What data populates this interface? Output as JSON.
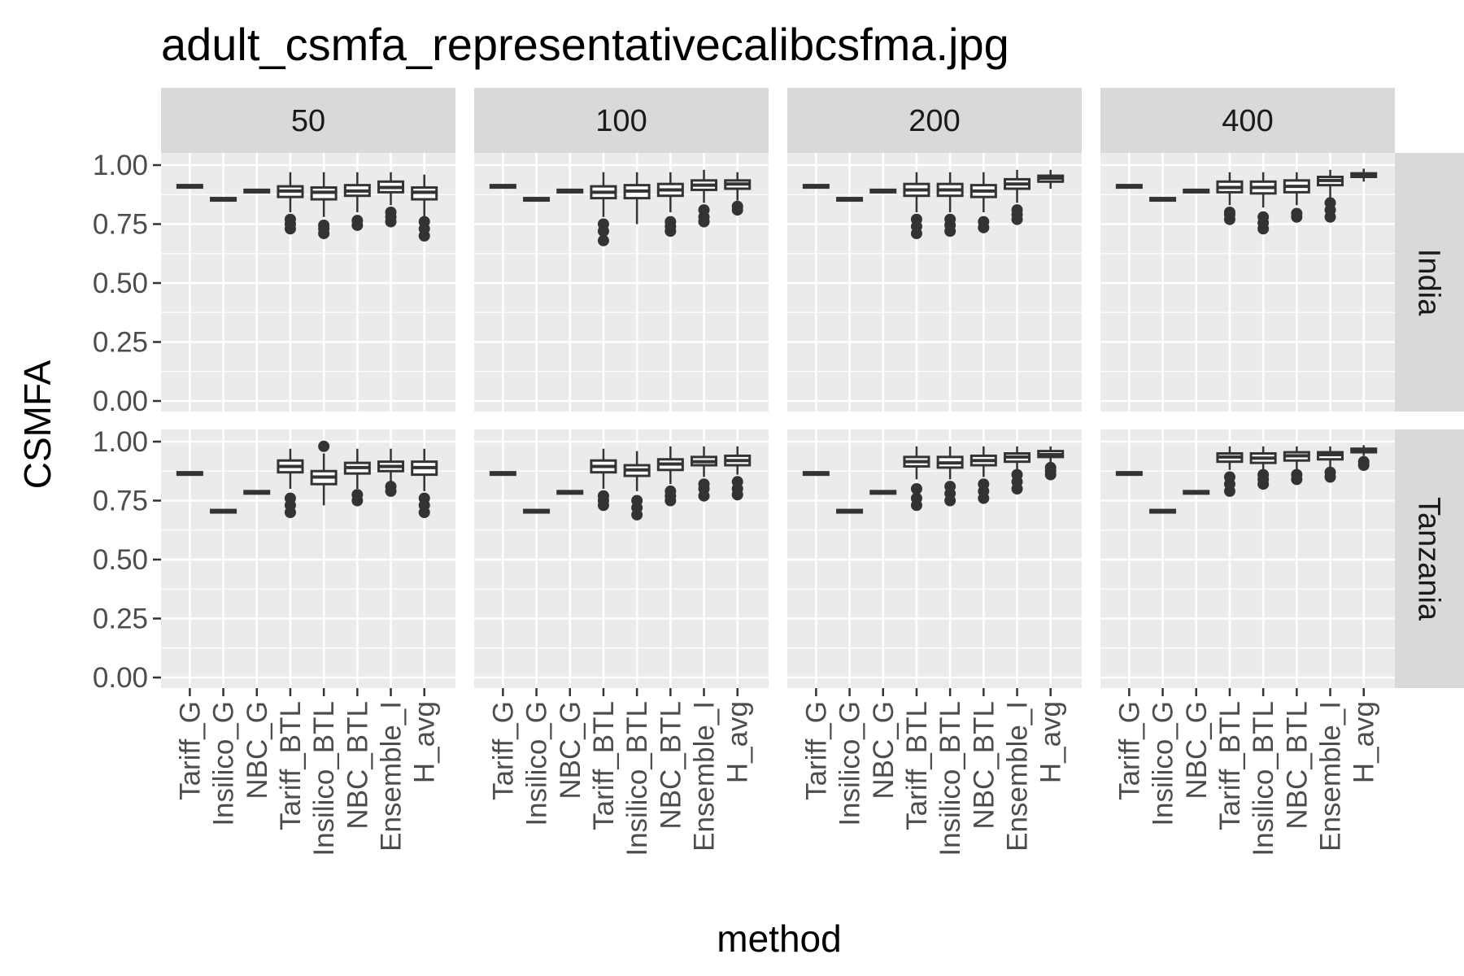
{
  "chart_data": {
    "type": "boxplot",
    "title": "adult_csmfa_representativecalibcsfma.jpg",
    "xlabel": "method",
    "ylabel": "CSMFA",
    "ylim": [
      0,
      1.05
    ],
    "y_ticks": [
      "0.00",
      "0.25",
      "0.50",
      "0.75",
      "1.00"
    ],
    "y_tick_values": [
      0,
      0.25,
      0.5,
      0.75,
      1.0
    ],
    "grid": true,
    "facet_cols": [
      "50",
      "100",
      "200",
      "400"
    ],
    "facet_rows": [
      "India",
      "Tanzania"
    ],
    "categories": [
      "Tariff_G",
      "Insilico_G",
      "NBC_G",
      "Tariff_BTL",
      "Insilico_BTL",
      "NBC_BTL",
      "Ensemble_I",
      "H_avg"
    ],
    "panels": [
      {
        "row": "India",
        "col": "50",
        "boxes": [
          {
            "method": "Tariff_G",
            "min": 0.91,
            "q1": 0.91,
            "median": 0.91,
            "q3": 0.91,
            "max": 0.91,
            "outliers": []
          },
          {
            "method": "Insilico_G",
            "min": 0.855,
            "q1": 0.855,
            "median": 0.855,
            "q3": 0.855,
            "max": 0.855,
            "outliers": []
          },
          {
            "method": "NBC_G",
            "min": 0.89,
            "q1": 0.89,
            "median": 0.89,
            "q3": 0.89,
            "max": 0.89,
            "outliers": []
          },
          {
            "method": "Tariff_BTL",
            "min": 0.8,
            "q1": 0.865,
            "median": 0.89,
            "q3": 0.91,
            "max": 0.97,
            "outliers": [
              0.73,
              0.75,
              0.77
            ]
          },
          {
            "method": "Insilico_BTL",
            "min": 0.78,
            "q1": 0.855,
            "median": 0.885,
            "q3": 0.905,
            "max": 0.97,
            "outliers": [
              0.71,
              0.73,
              0.745
            ]
          },
          {
            "method": "NBC_BTL",
            "min": 0.8,
            "q1": 0.87,
            "median": 0.89,
            "q3": 0.915,
            "max": 0.97,
            "outliers": [
              0.745,
              0.765
            ]
          },
          {
            "method": "Ensemble_I",
            "min": 0.83,
            "q1": 0.885,
            "median": 0.905,
            "q3": 0.93,
            "max": 0.97,
            "outliers": [
              0.76,
              0.78,
              0.8
            ]
          },
          {
            "method": "H_avg",
            "min": 0.78,
            "q1": 0.855,
            "median": 0.885,
            "q3": 0.905,
            "max": 0.96,
            "outliers": [
              0.7,
              0.73,
              0.76
            ]
          }
        ]
      },
      {
        "row": "India",
        "col": "100",
        "boxes": [
          {
            "method": "Tariff_G",
            "min": 0.91,
            "q1": 0.91,
            "median": 0.91,
            "q3": 0.91,
            "max": 0.91,
            "outliers": []
          },
          {
            "method": "Insilico_G",
            "min": 0.855,
            "q1": 0.855,
            "median": 0.855,
            "q3": 0.855,
            "max": 0.855,
            "outliers": []
          },
          {
            "method": "NBC_G",
            "min": 0.89,
            "q1": 0.89,
            "median": 0.89,
            "q3": 0.89,
            "max": 0.89,
            "outliers": []
          },
          {
            "method": "Tariff_BTL",
            "min": 0.78,
            "q1": 0.86,
            "median": 0.885,
            "q3": 0.91,
            "max": 0.97,
            "outliers": [
              0.68,
              0.72,
              0.75
            ]
          },
          {
            "method": "Insilico_BTL",
            "min": 0.75,
            "q1": 0.86,
            "median": 0.89,
            "q3": 0.915,
            "max": 0.97,
            "outliers": []
          },
          {
            "method": "NBC_BTL",
            "min": 0.8,
            "q1": 0.87,
            "median": 0.895,
            "q3": 0.92,
            "max": 0.97,
            "outliers": [
              0.72,
              0.74,
              0.76
            ]
          },
          {
            "method": "Ensemble_I",
            "min": 0.84,
            "q1": 0.895,
            "median": 0.915,
            "q3": 0.935,
            "max": 0.98,
            "outliers": [
              0.76,
              0.78,
              0.81
            ]
          },
          {
            "method": "H_avg",
            "min": 0.85,
            "q1": 0.9,
            "median": 0.92,
            "q3": 0.935,
            "max": 0.97,
            "outliers": [
              0.81,
              0.825
            ]
          }
        ]
      },
      {
        "row": "India",
        "col": "200",
        "boxes": [
          {
            "method": "Tariff_G",
            "min": 0.91,
            "q1": 0.91,
            "median": 0.91,
            "q3": 0.91,
            "max": 0.91,
            "outliers": []
          },
          {
            "method": "Insilico_G",
            "min": 0.855,
            "q1": 0.855,
            "median": 0.855,
            "q3": 0.855,
            "max": 0.855,
            "outliers": []
          },
          {
            "method": "NBC_G",
            "min": 0.89,
            "q1": 0.89,
            "median": 0.89,
            "q3": 0.89,
            "max": 0.89,
            "outliers": []
          },
          {
            "method": "Tariff_BTL",
            "min": 0.8,
            "q1": 0.87,
            "median": 0.895,
            "q3": 0.92,
            "max": 0.97,
            "outliers": [
              0.71,
              0.74,
              0.77
            ]
          },
          {
            "method": "Insilico_BTL",
            "min": 0.8,
            "q1": 0.87,
            "median": 0.895,
            "q3": 0.92,
            "max": 0.97,
            "outliers": [
              0.72,
              0.745,
              0.77
            ]
          },
          {
            "method": "NBC_BTL",
            "min": 0.8,
            "q1": 0.865,
            "median": 0.89,
            "q3": 0.915,
            "max": 0.97,
            "outliers": [
              0.735,
              0.76
            ]
          },
          {
            "method": "Ensemble_I",
            "min": 0.84,
            "q1": 0.9,
            "median": 0.92,
            "q3": 0.94,
            "max": 0.98,
            "outliers": [
              0.77,
              0.79,
              0.81
            ]
          },
          {
            "method": "H_avg",
            "min": 0.9,
            "q1": 0.93,
            "median": 0.945,
            "q3": 0.955,
            "max": 0.98,
            "outliers": []
          }
        ]
      },
      {
        "row": "India",
        "col": "400",
        "boxes": [
          {
            "method": "Tariff_G",
            "min": 0.91,
            "q1": 0.91,
            "median": 0.91,
            "q3": 0.91,
            "max": 0.91,
            "outliers": []
          },
          {
            "method": "Insilico_G",
            "min": 0.855,
            "q1": 0.855,
            "median": 0.855,
            "q3": 0.855,
            "max": 0.855,
            "outliers": []
          },
          {
            "method": "NBC_G",
            "min": 0.89,
            "q1": 0.89,
            "median": 0.89,
            "q3": 0.89,
            "max": 0.89,
            "outliers": []
          },
          {
            "method": "Tariff_BTL",
            "min": 0.83,
            "q1": 0.885,
            "median": 0.905,
            "q3": 0.93,
            "max": 0.97,
            "outliers": [
              0.77,
              0.79,
              0.8
            ]
          },
          {
            "method": "Insilico_BTL",
            "min": 0.82,
            "q1": 0.88,
            "median": 0.905,
            "q3": 0.93,
            "max": 0.97,
            "outliers": [
              0.73,
              0.755,
              0.78
            ]
          },
          {
            "method": "NBC_BTL",
            "min": 0.83,
            "q1": 0.885,
            "median": 0.91,
            "q3": 0.935,
            "max": 0.97,
            "outliers": [
              0.78,
              0.795
            ]
          },
          {
            "method": "Ensemble_I",
            "min": 0.86,
            "q1": 0.915,
            "median": 0.935,
            "q3": 0.95,
            "max": 0.98,
            "outliers": [
              0.78,
              0.81,
              0.84
            ]
          },
          {
            "method": "H_avg",
            "min": 0.93,
            "q1": 0.95,
            "median": 0.96,
            "q3": 0.965,
            "max": 0.985,
            "outliers": []
          }
        ]
      },
      {
        "row": "Tanzania",
        "col": "50",
        "boxes": [
          {
            "method": "Tariff_G",
            "min": 0.865,
            "q1": 0.865,
            "median": 0.865,
            "q3": 0.865,
            "max": 0.865,
            "outliers": []
          },
          {
            "method": "Insilico_G",
            "min": 0.705,
            "q1": 0.705,
            "median": 0.705,
            "q3": 0.705,
            "max": 0.705,
            "outliers": []
          },
          {
            "method": "NBC_G",
            "min": 0.785,
            "q1": 0.785,
            "median": 0.785,
            "q3": 0.785,
            "max": 0.785,
            "outliers": []
          },
          {
            "method": "Tariff_BTL",
            "min": 0.8,
            "q1": 0.87,
            "median": 0.895,
            "q3": 0.92,
            "max": 0.97,
            "outliers": [
              0.7,
              0.73,
              0.76
            ]
          },
          {
            "method": "Insilico_BTL",
            "min": 0.73,
            "q1": 0.82,
            "median": 0.85,
            "q3": 0.875,
            "max": 0.95,
            "outliers": [
              0.98
            ]
          },
          {
            "method": "NBC_BTL",
            "min": 0.8,
            "q1": 0.865,
            "median": 0.89,
            "q3": 0.91,
            "max": 0.97,
            "outliers": [
              0.75,
              0.775
            ]
          },
          {
            "method": "Ensemble_I",
            "min": 0.82,
            "q1": 0.875,
            "median": 0.895,
            "q3": 0.915,
            "max": 0.97,
            "outliers": [
              0.79,
              0.81
            ]
          },
          {
            "method": "H_avg",
            "min": 0.79,
            "q1": 0.86,
            "median": 0.89,
            "q3": 0.915,
            "max": 0.97,
            "outliers": [
              0.7,
              0.73,
              0.76
            ]
          }
        ]
      },
      {
        "row": "Tanzania",
        "col": "100",
        "boxes": [
          {
            "method": "Tariff_G",
            "min": 0.865,
            "q1": 0.865,
            "median": 0.865,
            "q3": 0.865,
            "max": 0.865,
            "outliers": []
          },
          {
            "method": "Insilico_G",
            "min": 0.705,
            "q1": 0.705,
            "median": 0.705,
            "q3": 0.705,
            "max": 0.705,
            "outliers": []
          },
          {
            "method": "NBC_G",
            "min": 0.785,
            "q1": 0.785,
            "median": 0.785,
            "q3": 0.785,
            "max": 0.785,
            "outliers": []
          },
          {
            "method": "Tariff_BTL",
            "min": 0.8,
            "q1": 0.87,
            "median": 0.895,
            "q3": 0.92,
            "max": 0.97,
            "outliers": [
              0.73,
              0.75,
              0.77
            ]
          },
          {
            "method": "Insilico_BTL",
            "min": 0.79,
            "q1": 0.855,
            "median": 0.88,
            "q3": 0.9,
            "max": 0.96,
            "outliers": [
              0.69,
              0.72,
              0.75
            ]
          },
          {
            "method": "NBC_BTL",
            "min": 0.82,
            "q1": 0.88,
            "median": 0.905,
            "q3": 0.925,
            "max": 0.98,
            "outliers": [
              0.75,
              0.77,
              0.79
            ]
          },
          {
            "method": "Ensemble_I",
            "min": 0.85,
            "q1": 0.9,
            "median": 0.915,
            "q3": 0.935,
            "max": 0.98,
            "outliers": [
              0.77,
              0.8,
              0.82
            ]
          },
          {
            "method": "H_avg",
            "min": 0.86,
            "q1": 0.9,
            "median": 0.92,
            "q3": 0.94,
            "max": 0.98,
            "outliers": [
              0.775,
              0.8,
              0.83
            ]
          }
        ]
      },
      {
        "row": "Tanzania",
        "col": "200",
        "boxes": [
          {
            "method": "Tariff_G",
            "min": 0.865,
            "q1": 0.865,
            "median": 0.865,
            "q3": 0.865,
            "max": 0.865,
            "outliers": []
          },
          {
            "method": "Insilico_G",
            "min": 0.705,
            "q1": 0.705,
            "median": 0.705,
            "q3": 0.705,
            "max": 0.705,
            "outliers": []
          },
          {
            "method": "NBC_G",
            "min": 0.785,
            "q1": 0.785,
            "median": 0.785,
            "q3": 0.785,
            "max": 0.785,
            "outliers": []
          },
          {
            "method": "Tariff_BTL",
            "min": 0.84,
            "q1": 0.895,
            "median": 0.915,
            "q3": 0.935,
            "max": 0.98,
            "outliers": [
              0.73,
              0.76,
              0.8
            ]
          },
          {
            "method": "Insilico_BTL",
            "min": 0.84,
            "q1": 0.89,
            "median": 0.91,
            "q3": 0.935,
            "max": 0.98,
            "outliers": [
              0.75,
              0.78,
              0.81
            ]
          },
          {
            "method": "NBC_BTL",
            "min": 0.85,
            "q1": 0.9,
            "median": 0.92,
            "q3": 0.94,
            "max": 0.98,
            "outliers": [
              0.76,
              0.79,
              0.82
            ]
          },
          {
            "method": "Ensemble_I",
            "min": 0.87,
            "q1": 0.915,
            "median": 0.935,
            "q3": 0.95,
            "max": 0.98,
            "outliers": [
              0.8,
              0.83,
              0.86
            ]
          },
          {
            "method": "H_avg",
            "min": 0.9,
            "q1": 0.935,
            "median": 0.945,
            "q3": 0.96,
            "max": 0.98,
            "outliers": [
              0.86,
              0.875,
              0.89
            ]
          }
        ]
      },
      {
        "row": "Tanzania",
        "col": "400",
        "boxes": [
          {
            "method": "Tariff_G",
            "min": 0.865,
            "q1": 0.865,
            "median": 0.865,
            "q3": 0.865,
            "max": 0.865,
            "outliers": []
          },
          {
            "method": "Insilico_G",
            "min": 0.705,
            "q1": 0.705,
            "median": 0.705,
            "q3": 0.705,
            "max": 0.705,
            "outliers": []
          },
          {
            "method": "NBC_G",
            "min": 0.785,
            "q1": 0.785,
            "median": 0.785,
            "q3": 0.785,
            "max": 0.785,
            "outliers": []
          },
          {
            "method": "Tariff_BTL",
            "min": 0.88,
            "q1": 0.915,
            "median": 0.935,
            "q3": 0.95,
            "max": 0.98,
            "outliers": [
              0.79,
              0.82,
              0.85
            ]
          },
          {
            "method": "Insilico_BTL",
            "min": 0.87,
            "q1": 0.91,
            "median": 0.93,
            "q3": 0.95,
            "max": 0.98,
            "outliers": [
              0.82,
              0.84,
              0.86
            ]
          },
          {
            "method": "NBC_BTL",
            "min": 0.88,
            "q1": 0.92,
            "median": 0.94,
            "q3": 0.955,
            "max": 0.98,
            "outliers": [
              0.84,
              0.86
            ]
          },
          {
            "method": "Ensemble_I",
            "min": 0.89,
            "q1": 0.925,
            "median": 0.945,
            "q3": 0.955,
            "max": 0.98,
            "outliers": [
              0.85,
              0.87
            ]
          },
          {
            "method": "H_avg",
            "min": 0.94,
            "q1": 0.955,
            "median": 0.965,
            "q3": 0.97,
            "max": 0.985,
            "outliers": [
              0.9,
              0.915
            ]
          }
        ]
      }
    ]
  },
  "colors": {
    "panel_background": "#ebebeb",
    "grid_line": "#ffffff",
    "strip_background": "#d9d9d9",
    "box_stroke": "#333333",
    "box_fill": "#ffffff",
    "tick_text": "#4d4d4d"
  }
}
